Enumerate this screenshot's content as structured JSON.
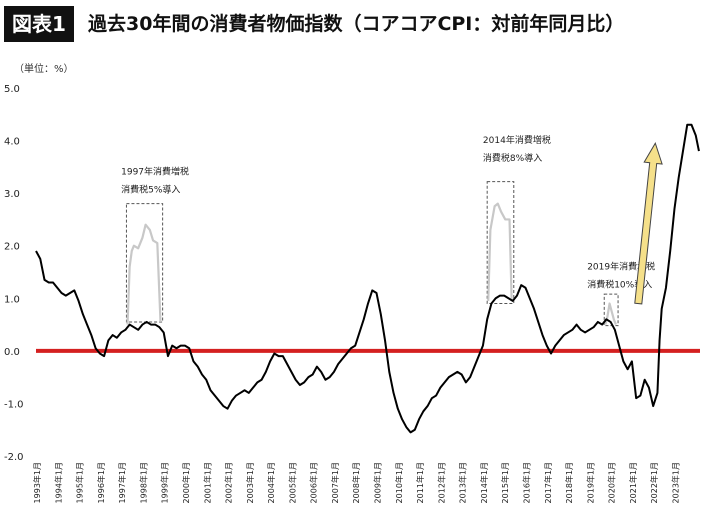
{
  "header": {
    "badge": "図表1",
    "title": "過去30年間の消費者物価指数（コアコアCPI：対前年同月比）"
  },
  "unit_label": "（単位：%）",
  "colors": {
    "line": "#000000",
    "tax_line": "#c8c8c8",
    "zero_line": "#d42020",
    "arrow_fill": "#f5e08a",
    "arrow_stroke": "#444444",
    "box_dash": "#555555"
  },
  "annotations": [
    {
      "lines": [
        "1997年消費増税",
        "消費税5%導入"
      ]
    },
    {
      "lines": [
        "2014年消費増税",
        "消費税8%導入"
      ]
    },
    {
      "lines": [
        "2019年消費増税",
        "消費税10%導入"
      ]
    }
  ],
  "chart_data": {
    "type": "line",
    "title": "過去30年間の消費者物価指数（コアコアCPI：対前年同月比）",
    "ylabel": "（単位：%）",
    "ylim": [
      -2.0,
      5.0
    ],
    "yticks": [
      "5.0",
      "4.0",
      "3.0",
      "2.0",
      "1.0",
      "0.0",
      "-1.0",
      "-2.0"
    ],
    "xtick_labels": [
      "1993年1月",
      "1994年1月",
      "1995年1月",
      "1996年1月",
      "1997年1月",
      "1998年1月",
      "1999年1月",
      "2000年1月",
      "2001年1月",
      "2002年1月",
      "2003年1月",
      "2004年1月",
      "2005年1月",
      "2006年1月",
      "2007年1月",
      "2008年1月",
      "2009年1月",
      "2010年1月",
      "2011年1月",
      "2012年1月",
      "2013年1月",
      "2014年1月",
      "2015年1月",
      "2016年1月",
      "2017年1月",
      "2018年1月",
      "2019年1月",
      "2020年1月",
      "2021年1月",
      "2022年1月",
      "2023年1月"
    ],
    "x_start": 1993.0,
    "x_end": 2024.2,
    "reference_line": 0.0,
    "grid": false,
    "series": [
      {
        "points": [
          [
            1993.0,
            1.9
          ],
          [
            1993.2,
            1.75
          ],
          [
            1993.4,
            1.35
          ],
          [
            1993.6,
            1.3
          ],
          [
            1993.8,
            1.3
          ],
          [
            1994.0,
            1.2
          ],
          [
            1994.2,
            1.1
          ],
          [
            1994.4,
            1.05
          ],
          [
            1994.6,
            1.1
          ],
          [
            1994.8,
            1.15
          ],
          [
            1995.0,
            0.95
          ],
          [
            1995.2,
            0.7
          ],
          [
            1995.4,
            0.5
          ],
          [
            1995.6,
            0.3
          ],
          [
            1995.8,
            0.05
          ],
          [
            1996.0,
            -0.05
          ],
          [
            1996.2,
            -0.1
          ],
          [
            1996.4,
            0.2
          ],
          [
            1996.6,
            0.3
          ],
          [
            1996.8,
            0.25
          ],
          [
            1997.0,
            0.35
          ],
          [
            1997.2,
            0.4
          ],
          [
            1997.4,
            0.5
          ],
          [
            1997.6,
            0.45
          ],
          [
            1997.8,
            0.4
          ],
          [
            1998.0,
            0.5
          ],
          [
            1998.2,
            0.55
          ],
          [
            1998.4,
            0.5
          ],
          [
            1998.6,
            0.5
          ],
          [
            1998.8,
            0.45
          ],
          [
            1999.0,
            0.35
          ],
          [
            1999.2,
            -0.1
          ],
          [
            1999.4,
            0.1
          ],
          [
            1999.6,
            0.05
          ],
          [
            1999.8,
            0.1
          ],
          [
            2000.0,
            0.1
          ],
          [
            2000.2,
            0.05
          ],
          [
            2000.4,
            -0.2
          ],
          [
            2000.6,
            -0.3
          ],
          [
            2000.8,
            -0.45
          ],
          [
            2001.0,
            -0.55
          ],
          [
            2001.2,
            -0.75
          ],
          [
            2001.4,
            -0.85
          ],
          [
            2001.6,
            -0.95
          ],
          [
            2001.8,
            -1.05
          ],
          [
            2002.0,
            -1.1
          ],
          [
            2002.2,
            -0.95
          ],
          [
            2002.4,
            -0.85
          ],
          [
            2002.6,
            -0.8
          ],
          [
            2002.8,
            -0.75
          ],
          [
            2003.0,
            -0.8
          ],
          [
            2003.2,
            -0.7
          ],
          [
            2003.4,
            -0.6
          ],
          [
            2003.6,
            -0.55
          ],
          [
            2003.8,
            -0.4
          ],
          [
            2004.0,
            -0.2
          ],
          [
            2004.2,
            -0.05
          ],
          [
            2004.4,
            -0.1
          ],
          [
            2004.6,
            -0.1
          ],
          [
            2004.8,
            -0.25
          ],
          [
            2005.0,
            -0.4
          ],
          [
            2005.2,
            -0.55
          ],
          [
            2005.4,
            -0.65
          ],
          [
            2005.6,
            -0.6
          ],
          [
            2005.8,
            -0.5
          ],
          [
            2006.0,
            -0.45
          ],
          [
            2006.2,
            -0.3
          ],
          [
            2006.4,
            -0.4
          ],
          [
            2006.6,
            -0.55
          ],
          [
            2006.8,
            -0.5
          ],
          [
            2007.0,
            -0.4
          ],
          [
            2007.2,
            -0.25
          ],
          [
            2007.4,
            -0.15
          ],
          [
            2007.6,
            -0.05
          ],
          [
            2007.8,
            0.05
          ],
          [
            2008.0,
            0.1
          ],
          [
            2008.2,
            0.35
          ],
          [
            2008.4,
            0.6
          ],
          [
            2008.6,
            0.9
          ],
          [
            2008.8,
            1.15
          ],
          [
            2009.0,
            1.1
          ],
          [
            2009.2,
            0.7
          ],
          [
            2009.4,
            0.2
          ],
          [
            2009.6,
            -0.4
          ],
          [
            2009.8,
            -0.8
          ],
          [
            2010.0,
            -1.1
          ],
          [
            2010.2,
            -1.3
          ],
          [
            2010.4,
            -1.45
          ],
          [
            2010.6,
            -1.55
          ],
          [
            2010.8,
            -1.5
          ],
          [
            2011.0,
            -1.3
          ],
          [
            2011.2,
            -1.15
          ],
          [
            2011.4,
            -1.05
          ],
          [
            2011.6,
            -0.9
          ],
          [
            2011.8,
            -0.85
          ],
          [
            2012.0,
            -0.7
          ],
          [
            2012.2,
            -0.6
          ],
          [
            2012.4,
            -0.5
          ],
          [
            2012.6,
            -0.45
          ],
          [
            2012.8,
            -0.4
          ],
          [
            2013.0,
            -0.45
          ],
          [
            2013.2,
            -0.6
          ],
          [
            2013.4,
            -0.5
          ],
          [
            2013.6,
            -0.3
          ],
          [
            2013.8,
            -0.1
          ],
          [
            2014.0,
            0.1
          ],
          [
            2014.2,
            0.6
          ],
          [
            2014.4,
            0.9
          ],
          [
            2014.6,
            1.0
          ],
          [
            2014.8,
            1.05
          ],
          [
            2015.0,
            1.05
          ],
          [
            2015.2,
            1.0
          ],
          [
            2015.4,
            0.95
          ],
          [
            2015.6,
            1.05
          ],
          [
            2015.8,
            1.25
          ],
          [
            2016.0,
            1.2
          ],
          [
            2016.2,
            1.0
          ],
          [
            2016.4,
            0.8
          ],
          [
            2016.6,
            0.55
          ],
          [
            2016.8,
            0.3
          ],
          [
            2017.0,
            0.1
          ],
          [
            2017.2,
            -0.05
          ],
          [
            2017.4,
            0.1
          ],
          [
            2017.6,
            0.2
          ],
          [
            2017.8,
            0.3
          ],
          [
            2018.0,
            0.35
          ],
          [
            2018.2,
            0.4
          ],
          [
            2018.4,
            0.5
          ],
          [
            2018.6,
            0.4
          ],
          [
            2018.8,
            0.35
          ],
          [
            2019.0,
            0.4
          ],
          [
            2019.2,
            0.45
          ],
          [
            2019.4,
            0.55
          ],
          [
            2019.6,
            0.5
          ],
          [
            2019.8,
            0.6
          ],
          [
            2020.0,
            0.55
          ],
          [
            2020.2,
            0.4
          ],
          [
            2020.4,
            0.1
          ],
          [
            2020.6,
            -0.2
          ],
          [
            2020.8,
            -0.35
          ],
          [
            2021.0,
            -0.2
          ],
          [
            2021.2,
            -0.9
          ],
          [
            2021.4,
            -0.85
          ],
          [
            2021.6,
            -0.55
          ],
          [
            2021.8,
            -0.7
          ],
          [
            2022.0,
            -1.05
          ],
          [
            2022.2,
            -0.8
          ],
          [
            2022.3,
            0.2
          ],
          [
            2022.4,
            0.8
          ],
          [
            2022.6,
            1.2
          ],
          [
            2022.8,
            1.9
          ],
          [
            2023.0,
            2.7
          ],
          [
            2023.2,
            3.3
          ],
          [
            2023.4,
            3.8
          ],
          [
            2023.6,
            4.3
          ],
          [
            2023.8,
            4.3
          ],
          [
            2024.0,
            4.1
          ],
          [
            2024.15,
            3.8
          ]
        ]
      },
      {
        "points": [
          [
            1997.3,
            0.5
          ],
          [
            1997.4,
            1.6
          ],
          [
            1997.5,
            1.9
          ],
          [
            1997.6,
            2.0
          ],
          [
            1997.8,
            1.95
          ],
          [
            1998.0,
            2.15
          ],
          [
            1998.15,
            2.4
          ],
          [
            1998.35,
            2.3
          ],
          [
            1998.5,
            2.1
          ],
          [
            1998.7,
            2.05
          ],
          [
            1998.85,
            0.55
          ]
        ]
      },
      {
        "points": [
          [
            2014.25,
            0.95
          ],
          [
            2014.35,
            2.3
          ],
          [
            2014.55,
            2.75
          ],
          [
            2014.7,
            2.8
          ],
          [
            2014.85,
            2.65
          ],
          [
            2015.05,
            2.5
          ],
          [
            2015.25,
            2.5
          ],
          [
            2015.35,
            0.95
          ]
        ]
      },
      {
        "points": [
          [
            2019.75,
            0.5
          ],
          [
            2019.85,
            0.65
          ],
          [
            2019.95,
            0.9
          ],
          [
            2020.05,
            0.75
          ],
          [
            2020.15,
            0.6
          ],
          [
            2020.25,
            0.5
          ]
        ]
      }
    ]
  }
}
